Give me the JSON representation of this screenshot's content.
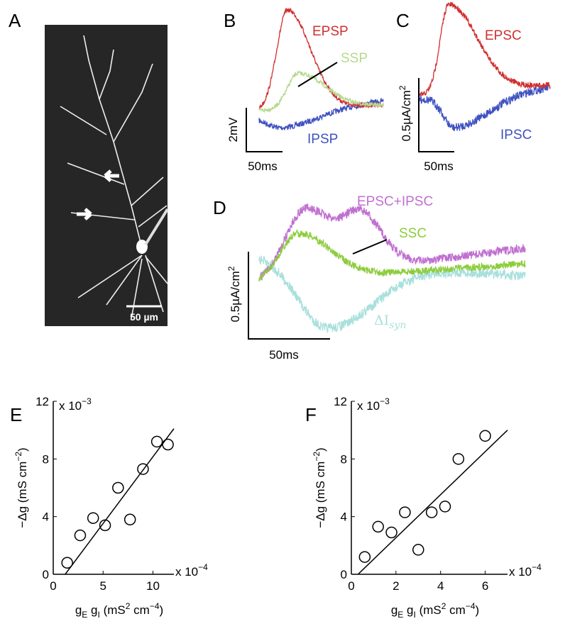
{
  "panels": {
    "A": {
      "label": "A",
      "scale_bar": "50 µm"
    },
    "B": {
      "label": "B",
      "traces": [
        "EPSP",
        "SSP",
        "IPSP"
      ],
      "scale_y": "2mV",
      "scale_x": "50ms"
    },
    "C": {
      "label": "C",
      "traces": [
        "EPSC",
        "IPSC"
      ],
      "scale_y": [
        "0.5µA/cm",
        "2"
      ],
      "scale_x": "50ms"
    },
    "D": {
      "label": "D",
      "traces": [
        "EPSC+IPSC",
        "SSC"
      ],
      "delta_label": [
        "ΔI",
        "syn"
      ],
      "scale_y": [
        "0.5µA/cm",
        "2"
      ],
      "scale_x": "50ms"
    }
  },
  "chart_data": [
    {
      "type": "scatter",
      "panel": "E",
      "x_label_parts": [
        "g",
        "E",
        " g",
        "I",
        " (mS",
        "2",
        " cm",
        "−4",
        ")"
      ],
      "y_label_parts": [
        "−Δg (mS cm",
        "−2",
        ")"
      ],
      "x_exponent": [
        "x 10",
        "−4"
      ],
      "y_exponent": [
        "x 10",
        "−3"
      ],
      "xlim": [
        0,
        12.1
      ],
      "ylim": [
        0,
        12
      ],
      "xticks": [
        0,
        5,
        10
      ],
      "yticks": [
        0,
        4,
        8,
        12
      ],
      "series": [
        {
          "x": [
            1.4,
            2.7,
            4.0,
            5.2,
            6.5,
            7.7,
            9.0,
            10.4,
            11.5
          ],
          "values": [
            0.8,
            2.7,
            3.9,
            3.4,
            6.0,
            3.8,
            7.3,
            9.2,
            9.0
          ]
        }
      ],
      "fit": {
        "x": [
          1.2,
          12.1
        ],
        "values": [
          0,
          10.1
        ]
      }
    },
    {
      "type": "scatter",
      "panel": "F",
      "x_label_parts": [
        "g",
        "E",
        " g",
        "I",
        " (mS",
        "2",
        " cm",
        "−4",
        ")"
      ],
      "y_label_parts": [
        "−Δg (mS cm",
        "−2",
        ")"
      ],
      "x_exponent": [
        "x 10",
        "−4"
      ],
      "y_exponent": [
        "x 10",
        "−3"
      ],
      "xlim": [
        0,
        7
      ],
      "ylim": [
        0,
        12
      ],
      "xticks": [
        0,
        2,
        4,
        6
      ],
      "yticks": [
        0,
        4,
        8,
        12
      ],
      "series": [
        {
          "x": [
            0.6,
            1.2,
            1.8,
            2.4,
            3.0,
            3.6,
            4.2,
            4.8,
            6.0
          ],
          "values": [
            1.2,
            3.3,
            2.9,
            4.3,
            1.7,
            4.3,
            4.7,
            8.0,
            9.6
          ]
        }
      ],
      "fit": {
        "x": [
          0.3,
          7.0
        ],
        "values": [
          0,
          10.0
        ]
      }
    }
  ]
}
